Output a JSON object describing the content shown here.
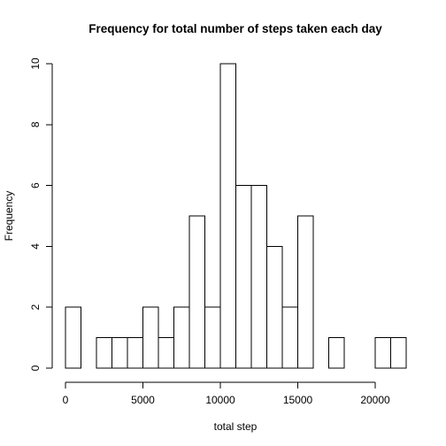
{
  "chart_data": {
    "type": "bar",
    "title": "Frequency for total number of steps taken each day",
    "xlabel": "total step",
    "ylabel": "Frequency",
    "x_ticks": [
      0,
      5000,
      10000,
      15000,
      20000
    ],
    "y_ticks": [
      0,
      2,
      4,
      6,
      8,
      10
    ],
    "xlim": [
      0,
      22000
    ],
    "ylim": [
      0,
      10
    ],
    "bin_width": 1000,
    "bins": [
      {
        "start": 0,
        "end": 1000,
        "count": 2
      },
      {
        "start": 1000,
        "end": 2000,
        "count": 0
      },
      {
        "start": 2000,
        "end": 3000,
        "count": 1
      },
      {
        "start": 3000,
        "end": 4000,
        "count": 1
      },
      {
        "start": 4000,
        "end": 5000,
        "count": 1
      },
      {
        "start": 5000,
        "end": 6000,
        "count": 2
      },
      {
        "start": 6000,
        "end": 7000,
        "count": 1
      },
      {
        "start": 7000,
        "end": 8000,
        "count": 2
      },
      {
        "start": 8000,
        "end": 9000,
        "count": 5
      },
      {
        "start": 9000,
        "end": 10000,
        "count": 2
      },
      {
        "start": 10000,
        "end": 11000,
        "count": 10
      },
      {
        "start": 11000,
        "end": 12000,
        "count": 6
      },
      {
        "start": 12000,
        "end": 13000,
        "count": 6
      },
      {
        "start": 13000,
        "end": 14000,
        "count": 4
      },
      {
        "start": 14000,
        "end": 15000,
        "count": 2
      },
      {
        "start": 15000,
        "end": 16000,
        "count": 5
      },
      {
        "start": 16000,
        "end": 17000,
        "count": 0
      },
      {
        "start": 17000,
        "end": 18000,
        "count": 1
      },
      {
        "start": 18000,
        "end": 19000,
        "count": 0
      },
      {
        "start": 19000,
        "end": 20000,
        "count": 0
      },
      {
        "start": 20000,
        "end": 21000,
        "count": 1
      },
      {
        "start": 21000,
        "end": 22000,
        "count": 1
      }
    ],
    "grid": false,
    "bar_fill": "#ffffff",
    "bar_stroke": "#000000"
  }
}
